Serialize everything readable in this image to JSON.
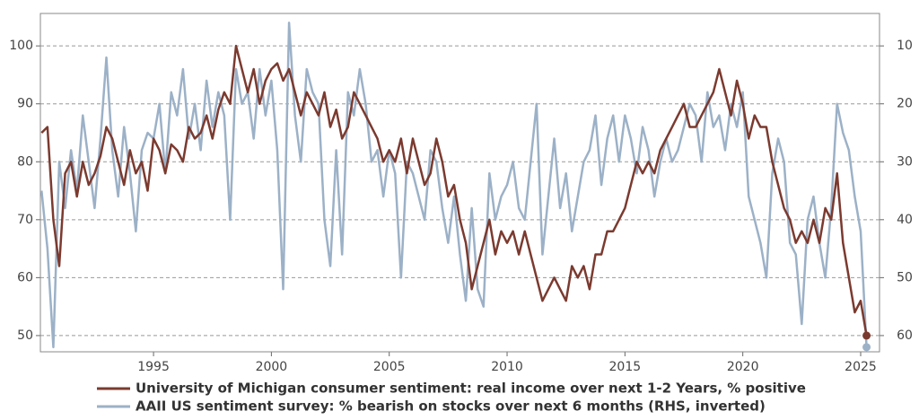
{
  "chart_data": {
    "type": "line",
    "x": [
      1990.25,
      1990.5,
      1990.75,
      1991,
      1991.25,
      1991.5,
      1991.75,
      1992,
      1992.25,
      1992.5,
      1992.75,
      1993,
      1993.25,
      1993.5,
      1993.75,
      1994,
      1994.25,
      1994.5,
      1994.75,
      1995,
      1995.25,
      1995.5,
      1995.75,
      1996,
      1996.25,
      1996.5,
      1996.75,
      1997,
      1997.25,
      1997.5,
      1997.75,
      1998,
      1998.25,
      1998.5,
      1998.75,
      1999,
      1999.25,
      1999.5,
      1999.75,
      2000,
      2000.25,
      2000.5,
      2000.75,
      2001,
      2001.25,
      2001.5,
      2001.75,
      2002,
      2002.25,
      2002.5,
      2002.75,
      2003,
      2003.25,
      2003.5,
      2003.75,
      2004,
      2004.25,
      2004.5,
      2004.75,
      2005,
      2005.25,
      2005.5,
      2005.75,
      2006,
      2006.25,
      2006.5,
      2006.75,
      2007,
      2007.25,
      2007.5,
      2007.75,
      2008,
      2008.25,
      2008.5,
      2008.75,
      2009,
      2009.25,
      2009.5,
      2009.75,
      2010,
      2010.25,
      2010.5,
      2010.75,
      2011,
      2011.25,
      2011.5,
      2011.75,
      2012,
      2012.25,
      2012.5,
      2012.75,
      2013,
      2013.25,
      2013.5,
      2013.75,
      2014,
      2014.25,
      2014.5,
      2014.75,
      2015,
      2015.25,
      2015.5,
      2015.75,
      2016,
      2016.25,
      2016.5,
      2016.75,
      2017,
      2017.25,
      2017.5,
      2017.75,
      2018,
      2018.25,
      2018.5,
      2018.75,
      2019,
      2019.25,
      2019.5,
      2019.75,
      2020,
      2020.25,
      2020.5,
      2020.75,
      2021,
      2021.25,
      2021.5,
      2021.75,
      2022,
      2022.25,
      2022.5,
      2022.75,
      2023,
      2023.25,
      2023.5,
      2023.75,
      2024,
      2024.25,
      2024.5,
      2024.75,
      2025,
      2025.25
    ],
    "series": [
      {
        "name": "University of Michigan consumer sentiment:  real income over next 1-2 Years, % positive",
        "color": "#7b3a2f",
        "axis": "y",
        "values": [
          85,
          86,
          70,
          62,
          78,
          80,
          74,
          80,
          76,
          78,
          81,
          86,
          84,
          80,
          76,
          82,
          78,
          80,
          75,
          84,
          82,
          78,
          83,
          82,
          80,
          86,
          84,
          85,
          88,
          84,
          89,
          92,
          90,
          100,
          96,
          92,
          96,
          90,
          94,
          96,
          97,
          94,
          96,
          92,
          88,
          92,
          90,
          88,
          92,
          86,
          89,
          84,
          86,
          92,
          90,
          88,
          86,
          84,
          80,
          82,
          80,
          84,
          78,
          84,
          80,
          76,
          78,
          84,
          80,
          74,
          76,
          70,
          66,
          58,
          62,
          66,
          70,
          64,
          68,
          66,
          68,
          64,
          68,
          64,
          60,
          56,
          58,
          60,
          58,
          56,
          62,
          60,
          62,
          58,
          64,
          64,
          68,
          68,
          70,
          72,
          76,
          80,
          78,
          80,
          78,
          82,
          84,
          86,
          88,
          90,
          86,
          86,
          88,
          90,
          92,
          96,
          92,
          88,
          94,
          90,
          84,
          88,
          86,
          86,
          80,
          76,
          72,
          70,
          66,
          68,
          66,
          70,
          66,
          72,
          70,
          78,
          66,
          60,
          54,
          56,
          50
        ]
      },
      {
        "name": "AAII US sentiment survey: % bearish on stocks over next 6 months (RHS, inverted)",
        "color": "#9cb1c7",
        "axis": "y2",
        "values": [
          35,
          45,
          62,
          30,
          38,
          28,
          35,
          22,
          30,
          38,
          26,
          12,
          28,
          36,
          24,
          32,
          42,
          28,
          25,
          26,
          20,
          32,
          18,
          22,
          14,
          26,
          20,
          28,
          16,
          24,
          18,
          22,
          40,
          14,
          20,
          18,
          26,
          14,
          22,
          16,
          28,
          52,
          6,
          22,
          30,
          14,
          18,
          20,
          40,
          48,
          28,
          46,
          18,
          22,
          14,
          20,
          30,
          28,
          36,
          28,
          32,
          50,
          30,
          32,
          36,
          40,
          28,
          30,
          38,
          44,
          36,
          46,
          54,
          38,
          52,
          55,
          32,
          40,
          36,
          34,
          30,
          38,
          40,
          30,
          20,
          46,
          36,
          26,
          38,
          32,
          42,
          36,
          30,
          28,
          22,
          34,
          26,
          22,
          30,
          22,
          26,
          32,
          24,
          28,
          36,
          30,
          26,
          30,
          28,
          24,
          20,
          22,
          30,
          18,
          24,
          22,
          28,
          20,
          24,
          18,
          36,
          40,
          44,
          50,
          32,
          26,
          30,
          44,
          46,
          58,
          40,
          36,
          44,
          50,
          38,
          20,
          25,
          28,
          36,
          42,
          62
        ]
      }
    ],
    "xlim": [
      1990.2,
      2025.8
    ],
    "xticks": [
      1995,
      2000,
      2005,
      2010,
      2015,
      2020,
      2025
    ],
    "ylim": [
      47.2,
      105.6
    ],
    "yticks": [
      50,
      60,
      70,
      80,
      90,
      100
    ],
    "y2lim": [
      62.8,
      4.4
    ],
    "y2ticks": [
      10,
      20,
      30,
      40,
      50,
      60
    ],
    "grid": true
  }
}
